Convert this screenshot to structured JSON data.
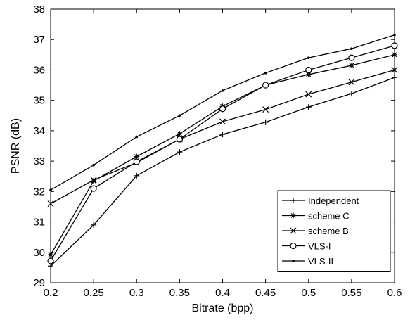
{
  "chart_data": {
    "type": "line",
    "xlabel": "Bitrate (bpp)",
    "ylabel": "PSNR (dB)",
    "xlim": [
      0.2,
      0.6
    ],
    "ylim": [
      29,
      38
    ],
    "x_ticks": [
      "0.2",
      "0.25",
      "0.3",
      "0.35",
      "0.4",
      "0.45",
      "0.5",
      "0.55",
      "0.6"
    ],
    "y_ticks": [
      "29",
      "30",
      "31",
      "32",
      "33",
      "34",
      "35",
      "36",
      "37",
      "38"
    ],
    "grid": false,
    "legend_position": "bottom-right",
    "x": [
      0.2,
      0.25,
      0.3,
      0.35,
      0.4,
      0.45,
      0.5,
      0.55,
      0.6
    ],
    "series": [
      {
        "name": "Independent",
        "marker": "plus",
        "values": [
          29.55,
          30.9,
          32.52,
          33.3,
          33.88,
          34.28,
          34.78,
          35.22,
          35.75
        ]
      },
      {
        "name": "scheme C",
        "marker": "star",
        "values": [
          29.92,
          32.35,
          33.15,
          33.9,
          34.8,
          35.5,
          35.85,
          36.15,
          36.5
        ]
      },
      {
        "name": "scheme B",
        "marker": "x",
        "values": [
          31.6,
          32.38,
          32.95,
          33.72,
          34.3,
          34.7,
          35.2,
          35.6,
          36.0
        ]
      },
      {
        "name": "VLS-I",
        "marker": "circle",
        "values": [
          29.72,
          32.1,
          32.98,
          33.72,
          34.72,
          35.5,
          36.0,
          36.4,
          36.8
        ]
      },
      {
        "name": "VLS-II",
        "marker": "dot",
        "values": [
          32.05,
          32.87,
          33.8,
          34.5,
          35.32,
          35.9,
          36.4,
          36.7,
          37.15
        ]
      }
    ]
  }
}
